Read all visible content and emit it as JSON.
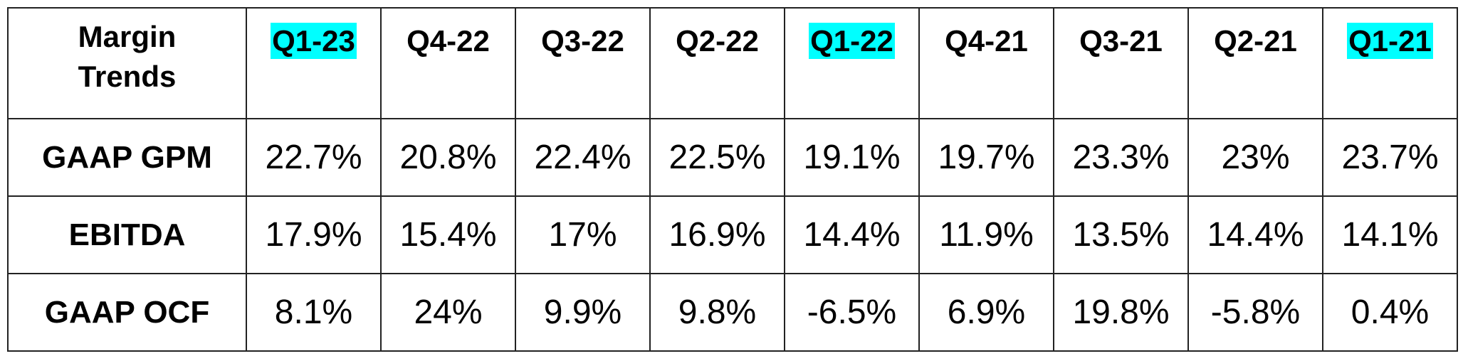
{
  "table": {
    "corner": "Margin\nTrends",
    "highlight_color": "#00ffff",
    "columns": [
      {
        "text": "Q1-23",
        "highlight": true
      },
      {
        "text": "Q4-22",
        "highlight": false
      },
      {
        "text": "Q3-22",
        "highlight": false
      },
      {
        "text": "Q2-22",
        "highlight": false
      },
      {
        "text": "Q1-22",
        "highlight": true
      },
      {
        "text": "Q4-21",
        "highlight": false
      },
      {
        "text": "Q3-21",
        "highlight": false
      },
      {
        "text": "Q2-21",
        "highlight": false
      },
      {
        "text": "Q1-21",
        "highlight": true
      }
    ],
    "rows": [
      {
        "label": "GAAP GPM",
        "cells": [
          "22.7%",
          "20.8%",
          "22.4%",
          "22.5%",
          "19.1%",
          "19.7%",
          "23.3%",
          "23%",
          "23.7%"
        ]
      },
      {
        "label": "EBITDA",
        "cells": [
          "17.9%",
          "15.4%",
          "17%",
          "16.9%",
          "14.4%",
          "11.9%",
          "13.5%",
          "14.4%",
          "14.1%"
        ]
      },
      {
        "label": "GAAP OCF",
        "cells": [
          "8.1%",
          "24%",
          "9.9%",
          "9.8%",
          "-6.5%",
          "6.9%",
          "19.8%",
          "-5.8%",
          "0.4%"
        ]
      }
    ]
  }
}
